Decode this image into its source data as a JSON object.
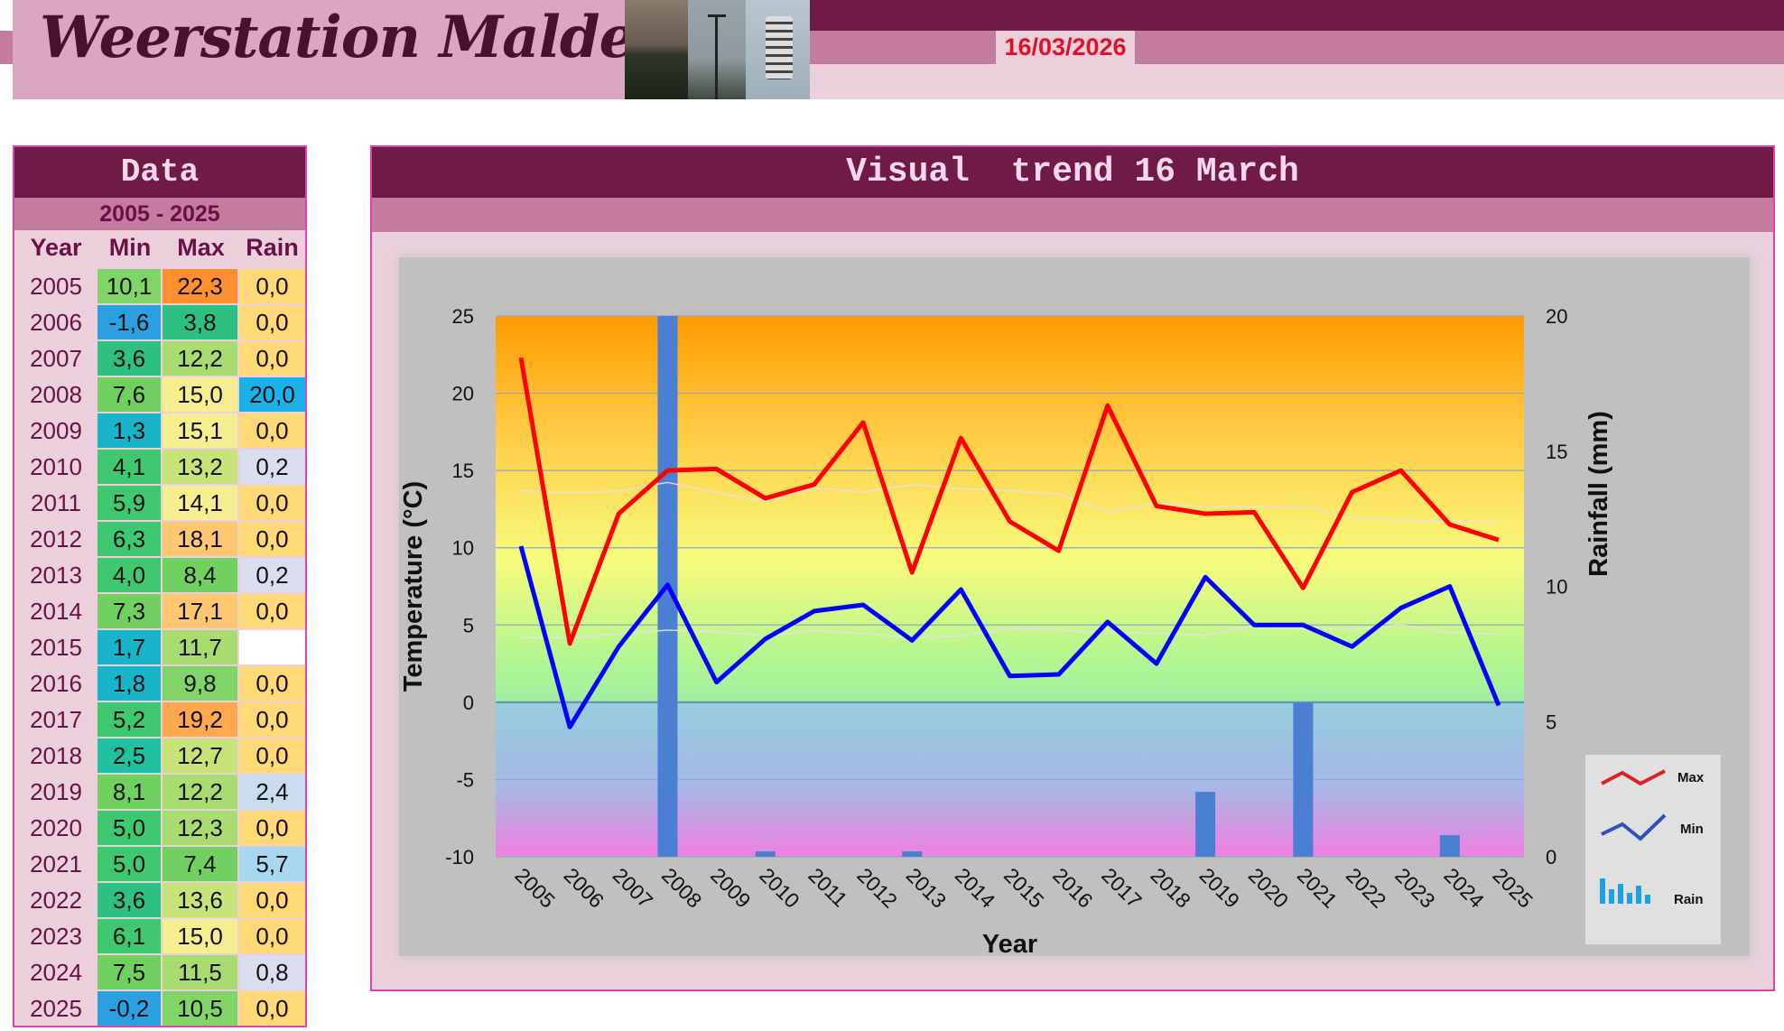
{
  "header": {
    "title": "Weerstation Malderen",
    "date": "16/03/2026"
  },
  "data_panel": {
    "title": "Data",
    "range": "2005 - 2025",
    "columns": [
      "Year",
      "Min",
      "Max",
      "Rain"
    ],
    "rows": [
      {
        "year": "2005",
        "min": "10,1",
        "max": "22,3",
        "rain": "0,0"
      },
      {
        "year": "2006",
        "min": "-1,6",
        "max": "3,8",
        "rain": "0,0"
      },
      {
        "year": "2007",
        "min": "3,6",
        "max": "12,2",
        "rain": "0,0"
      },
      {
        "year": "2008",
        "min": "7,6",
        "max": "15,0",
        "rain": "20,0"
      },
      {
        "year": "2009",
        "min": "1,3",
        "max": "15,1",
        "rain": "0,0"
      },
      {
        "year": "2010",
        "min": "4,1",
        "max": "13,2",
        "rain": "0,2"
      },
      {
        "year": "2011",
        "min": "5,9",
        "max": "14,1",
        "rain": "0,0"
      },
      {
        "year": "2012",
        "min": "6,3",
        "max": "18,1",
        "rain": "0,0"
      },
      {
        "year": "2013",
        "min": "4,0",
        "max": "8,4",
        "rain": "0,2"
      },
      {
        "year": "2014",
        "min": "7,3",
        "max": "17,1",
        "rain": "0,0"
      },
      {
        "year": "2015",
        "min": "1,7",
        "max": "11,7",
        "rain": ""
      },
      {
        "year": "2016",
        "min": "1,8",
        "max": "9,8",
        "rain": "0,0"
      },
      {
        "year": "2017",
        "min": "5,2",
        "max": "19,2",
        "rain": "0,0"
      },
      {
        "year": "2018",
        "min": "2,5",
        "max": "12,7",
        "rain": "0,0"
      },
      {
        "year": "2019",
        "min": "8,1",
        "max": "12,2",
        "rain": "2,4"
      },
      {
        "year": "2020",
        "min": "5,0",
        "max": "12,3",
        "rain": "0,0"
      },
      {
        "year": "2021",
        "min": "5,0",
        "max": "7,4",
        "rain": "5,7"
      },
      {
        "year": "2022",
        "min": "3,6",
        "max": "13,6",
        "rain": "0,0"
      },
      {
        "year": "2023",
        "min": "6,1",
        "max": "15,0",
        "rain": "0,0"
      },
      {
        "year": "2024",
        "min": "7,5",
        "max": "11,5",
        "rain": "0,8"
      },
      {
        "year": "2025",
        "min": "-0,2",
        "max": "10,5",
        "rain": "0,0"
      }
    ]
  },
  "chart_panel": {
    "title": "Visual  trend 16 March"
  },
  "chart_data": {
    "type": "line",
    "x": [
      2005,
      2006,
      2007,
      2008,
      2009,
      2010,
      2011,
      2012,
      2013,
      2014,
      2015,
      2016,
      2017,
      2018,
      2019,
      2020,
      2021,
      2022,
      2023,
      2024,
      2025
    ],
    "series": [
      {
        "name": "Max",
        "type": "line",
        "axis": "left",
        "color": "#ff0000",
        "values": [
          22.3,
          3.8,
          12.2,
          15.0,
          15.1,
          13.2,
          14.1,
          18.1,
          8.4,
          17.1,
          11.7,
          9.8,
          19.2,
          12.7,
          12.2,
          12.3,
          7.4,
          13.6,
          15.0,
          11.5,
          10.5
        ]
      },
      {
        "name": "Min",
        "type": "line",
        "axis": "left",
        "color": "#0000ff",
        "values": [
          10.1,
          -1.6,
          3.6,
          7.6,
          1.3,
          4.1,
          5.9,
          6.3,
          4.0,
          7.3,
          1.7,
          1.8,
          5.2,
          2.5,
          8.1,
          5.0,
          5.0,
          3.6,
          6.1,
          7.5,
          -0.2
        ]
      },
      {
        "name": "Rain",
        "type": "bar",
        "axis": "right",
        "color": "#4a7fd4",
        "values": [
          0,
          0,
          0,
          20,
          0,
          0.2,
          0,
          0,
          0.2,
          0,
          null,
          0,
          0,
          0,
          2.4,
          0,
          5.7,
          0,
          0,
          0.8,
          0
        ]
      }
    ],
    "xlabel": "Year",
    "ylabel": "Temperature (°C)",
    "y2label": "Rainfall (mm)",
    "ylim": [
      -10,
      25
    ],
    "y2lim": [
      0,
      20
    ],
    "yticks": [
      -10,
      -5,
      0,
      5,
      10,
      15,
      20,
      25
    ],
    "y2ticks": [
      0,
      5,
      10,
      15,
      20
    ],
    "legend": [
      {
        "label": "Max",
        "icon": "red-line-icon"
      },
      {
        "label": "Min",
        "icon": "blue-line-icon"
      },
      {
        "label": "Rain",
        "icon": "bar-chart-icon"
      }
    ],
    "legend_position": "bottom-right",
    "grid": true
  },
  "colors": {
    "accent_dark": "#701a48",
    "accent_mid": "#c37ba0",
    "accent_light": "#ebd0dc",
    "border": "#e040b0",
    "date_text": "#e0102a"
  }
}
